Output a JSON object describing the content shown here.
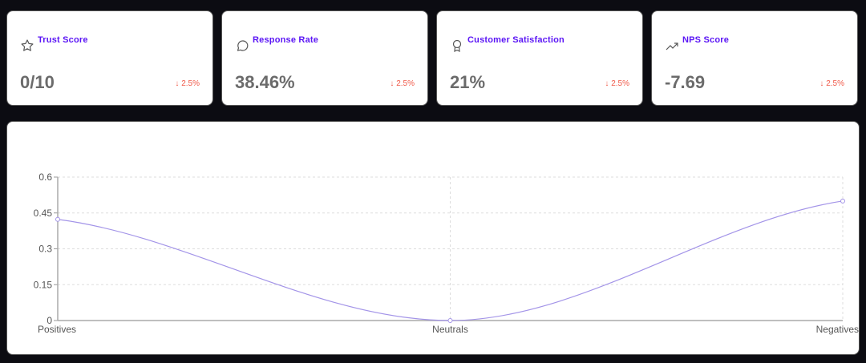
{
  "cards": [
    {
      "title": "Trust Score",
      "value": "0/10",
      "delta": "2.5%",
      "icon": "star-icon"
    },
    {
      "title": "Response Rate",
      "value": "38.46%",
      "delta": "2.5%",
      "icon": "message-circle-icon"
    },
    {
      "title": "Customer Satisfaction",
      "value": "21%",
      "delta": "2.5%",
      "icon": "award-icon"
    },
    {
      "title": "NPS Score",
      "value": "-7.69",
      "delta": "2.5%",
      "icon": "trending-up-icon"
    }
  ],
  "colors": {
    "accent": "#5b16f5",
    "delta": "#f05a4a",
    "line": "#a394e8"
  },
  "chart_data": {
    "type": "line",
    "categories": [
      "Positives",
      "Neutrals",
      "Negatives"
    ],
    "values": [
      0.4231,
      0,
      0.5
    ],
    "ylim": [
      0,
      0.6
    ],
    "yticks": [
      "0",
      "0.15",
      "0.3",
      "0.45",
      "0.6"
    ],
    "grid": true
  }
}
